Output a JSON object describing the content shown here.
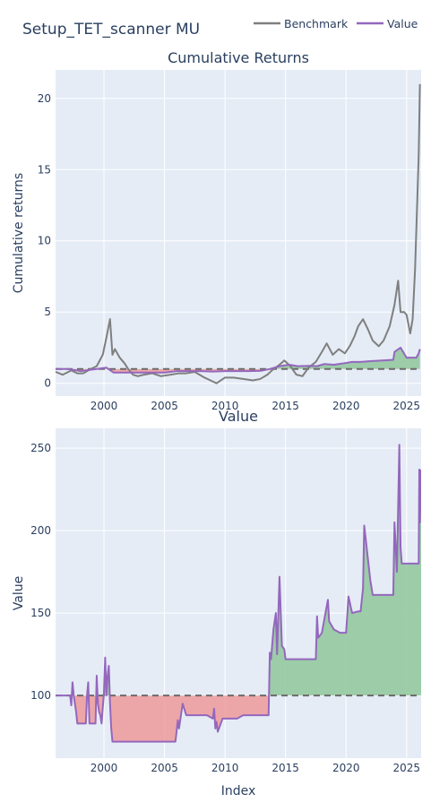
{
  "title": "Setup_TET_scanner MU",
  "legend": {
    "placement": "top-right",
    "items": [
      {
        "name": "Benchmark",
        "color": "#7f7f7f"
      },
      {
        "name": "Value",
        "color": "#9467bd"
      }
    ]
  },
  "colors": {
    "plot_bg": "#e5ecf6",
    "grid": "#ffffff",
    "benchmark": "#7f7f7f",
    "value": "#9467bd",
    "gain_fill": "#8fc79a",
    "loss_fill": "#ee9a9a",
    "baseline": "#6b6b6b",
    "text": "#2a3f5f"
  },
  "chart_data": [
    {
      "type": "line",
      "title": "Cumulative Returns",
      "xlabel": "",
      "ylabel": "Cumulative returns",
      "xlim": [
        1996.0,
        2026.2
      ],
      "ylim": [
        -0.9,
        22
      ],
      "x_ticks": [
        2000,
        2005,
        2010,
        2015,
        2020,
        2025
      ],
      "y_ticks": [
        0,
        5,
        10,
        15,
        20
      ],
      "baseline": 1,
      "grid": true,
      "series": [
        {
          "name": "Benchmark",
          "x": [
            1996.0,
            1996.6,
            1997.3,
            1997.8,
            1998.3,
            1998.9,
            1999.4,
            1999.9,
            2000.2,
            2000.5,
            2000.7,
            2000.9,
            2001.3,
            2001.7,
            2002.0,
            2002.4,
            2002.8,
            2003.3,
            2004.0,
            2004.7,
            2005.5,
            2006.2,
            2006.8,
            2007.5,
            2008.3,
            2008.8,
            2009.3,
            2010.0,
            2010.7,
            2011.5,
            2012.3,
            2012.9,
            2013.5,
            2014.0,
            2014.5,
            2014.9,
            2015.4,
            2015.9,
            2016.4,
            2016.9,
            2017.5,
            2018.0,
            2018.4,
            2018.9,
            2019.4,
            2019.9,
            2020.3,
            2020.7,
            2021.0,
            2021.4,
            2021.8,
            2022.2,
            2022.7,
            2023.1,
            2023.6,
            2024.0,
            2024.3,
            2024.5,
            2024.8,
            2025.0,
            2025.3,
            2025.5,
            2025.7,
            2025.85,
            2026.0,
            2026.1
          ],
          "values": [
            0.8,
            0.6,
            0.9,
            0.7,
            0.7,
            1.0,
            1.2,
            2.0,
            3.2,
            4.5,
            2.0,
            2.4,
            1.8,
            1.4,
            1.0,
            0.6,
            0.5,
            0.6,
            0.7,
            0.5,
            0.6,
            0.7,
            0.7,
            0.8,
            0.4,
            0.2,
            0.0,
            0.4,
            0.4,
            0.3,
            0.2,
            0.3,
            0.6,
            1.0,
            1.3,
            1.6,
            1.2,
            0.6,
            0.5,
            1.1,
            1.5,
            2.2,
            2.8,
            2.0,
            2.4,
            2.1,
            2.6,
            3.3,
            4.0,
            4.5,
            3.8,
            3.0,
            2.6,
            3.0,
            4.0,
            5.5,
            7.2,
            5.0,
            5.0,
            4.8,
            3.5,
            4.5,
            8.0,
            12.0,
            16.0,
            21.0
          ]
        },
        {
          "name": "Value",
          "x": [
            1996.0,
            1997.0,
            1997.4,
            1998.1,
            1998.9,
            1999.4,
            2000.2,
            2000.8,
            2001.2,
            2002.0,
            2003.0,
            2004.0,
            2005.0,
            2006.0,
            2007.0,
            2008.0,
            2009.0,
            2010.0,
            2011.0,
            2012.0,
            2013.0,
            2013.7,
            2014.5,
            2015.3,
            2016.0,
            2017.0,
            2017.6,
            2018.2,
            2019.0,
            2019.8,
            2020.5,
            2021.2,
            2022.0,
            2023.0,
            2023.9,
            2024.0,
            2024.5,
            2025.0,
            2025.8,
            2026.0,
            2026.1
          ],
          "values": [
            1.0,
            1.0,
            0.95,
            0.85,
            0.95,
            1.0,
            1.1,
            0.75,
            0.75,
            0.75,
            0.75,
            0.75,
            0.75,
            0.85,
            0.85,
            0.85,
            0.82,
            0.85,
            0.85,
            0.85,
            0.88,
            1.0,
            1.2,
            1.3,
            1.2,
            1.22,
            1.2,
            1.35,
            1.3,
            1.4,
            1.5,
            1.5,
            1.55,
            1.6,
            1.65,
            2.2,
            2.5,
            1.8,
            1.8,
            2.1,
            2.4
          ]
        }
      ]
    },
    {
      "type": "area",
      "title": "Value",
      "xlabel": "Index",
      "ylabel": "Value",
      "xlim": [
        1996.0,
        2026.2
      ],
      "ylim": [
        62,
        262
      ],
      "x_ticks": [
        2000,
        2005,
        2010,
        2015,
        2020,
        2025
      ],
      "y_ticks": [
        100,
        150,
        200,
        250
      ],
      "baseline": 100,
      "grid": true,
      "series": [
        {
          "name": "Value",
          "x": [
            1996.0,
            1997.2,
            1997.3,
            1997.4,
            1997.5,
            1997.6,
            1997.7,
            1997.8,
            1998.5,
            1998.6,
            1998.7,
            1998.75,
            1998.8,
            1998.9,
            1999.3,
            1999.4,
            1999.5,
            1999.6,
            1999.7,
            1999.8,
            2000.0,
            2000.1,
            2000.2,
            2000.3,
            2000.4,
            2000.5,
            2000.6,
            2000.7,
            2001.0,
            2002.0,
            2003.0,
            2004.0,
            2005.0,
            2005.9,
            2006.0,
            2006.1,
            2006.2,
            2006.5,
            2006.8,
            2007.0,
            2007.5,
            2008.0,
            2008.5,
            2009.0,
            2009.1,
            2009.2,
            2009.3,
            2009.4,
            2009.6,
            2009.8,
            2010.0,
            2010.5,
            2011.0,
            2011.5,
            2012.0,
            2012.5,
            2013.0,
            2013.6,
            2013.7,
            2013.8,
            2014.0,
            2014.2,
            2014.3,
            2014.5,
            2014.7,
            2014.9,
            2015.0,
            2016.0,
            2017.0,
            2017.5,
            2017.6,
            2017.7,
            2018.0,
            2018.5,
            2018.6,
            2019.0,
            2019.5,
            2020.0,
            2020.2,
            2020.5,
            2021.0,
            2021.2,
            2021.4,
            2021.5,
            2022.0,
            2022.2,
            2022.4,
            2022.5,
            2023.0,
            2023.5,
            2023.9,
            2024.0,
            2024.2,
            2024.4,
            2024.5,
            2024.6,
            2024.8,
            2025.0,
            2026.0,
            2026.05,
            2026.1,
            2026.2
          ],
          "values": [
            100,
            100,
            94,
            108,
            100,
            95,
            90,
            83,
            83,
            100,
            108,
            95,
            83,
            83,
            83,
            112,
            95,
            90,
            88,
            83,
            102,
            123,
            100,
            112,
            118,
            95,
            80,
            72,
            72,
            72,
            72,
            72,
            72,
            72,
            78,
            85,
            80,
            95,
            88,
            88,
            88,
            88,
            88,
            86,
            92,
            80,
            84,
            78,
            82,
            86,
            86,
            86,
            86,
            88,
            88,
            88,
            88,
            88,
            126,
            122,
            140,
            150,
            125,
            172,
            130,
            128,
            122,
            122,
            122,
            122,
            148,
            135,
            138,
            158,
            145,
            140,
            138,
            138,
            160,
            150,
            151,
            151,
            165,
            203,
            170,
            161,
            161,
            161,
            161,
            161,
            161,
            205,
            175,
            252,
            190,
            180,
            180,
            180,
            180,
            237,
            205,
            237
          ]
        }
      ]
    }
  ]
}
